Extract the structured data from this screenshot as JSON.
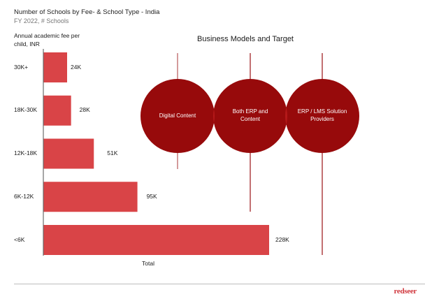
{
  "header": {
    "title": "Number of Schools by Fee- & School Type - India",
    "subtitle": "FY 2022, # Schools"
  },
  "chart_data": {
    "type": "bar",
    "orientation": "horizontal",
    "title": "Number of Schools by Fee- & School Type - India",
    "subtitle": "FY 2022, # Schools",
    "ylabel": "Annual academic fee per child, INR",
    "xlabel": "Total",
    "categories": [
      "30K+",
      "18K-30K",
      "12K-18K",
      "6K-12K",
      "<6K"
    ],
    "values": [
      24,
      28,
      51,
      95,
      228
    ],
    "value_labels": [
      "24K",
      "28K",
      "51K",
      "95K",
      "228K"
    ],
    "units": "thousand schools",
    "xlim": [
      0,
      228
    ],
    "grid": false,
    "legend": "none",
    "bar_color": "#d94447"
  },
  "business_models": {
    "title": "Business Models and Target",
    "circles": [
      {
        "label": "Digital Content"
      },
      {
        "label": "Both ERP and Content"
      },
      {
        "label": "ERP / LMS Solution Providers"
      }
    ],
    "circle_color": "#970a0b",
    "overlap_color": "#b5191a",
    "line_color": "#9a1214"
  },
  "footer": {
    "logo": "redseer",
    "logo_color": "#d0393f"
  }
}
